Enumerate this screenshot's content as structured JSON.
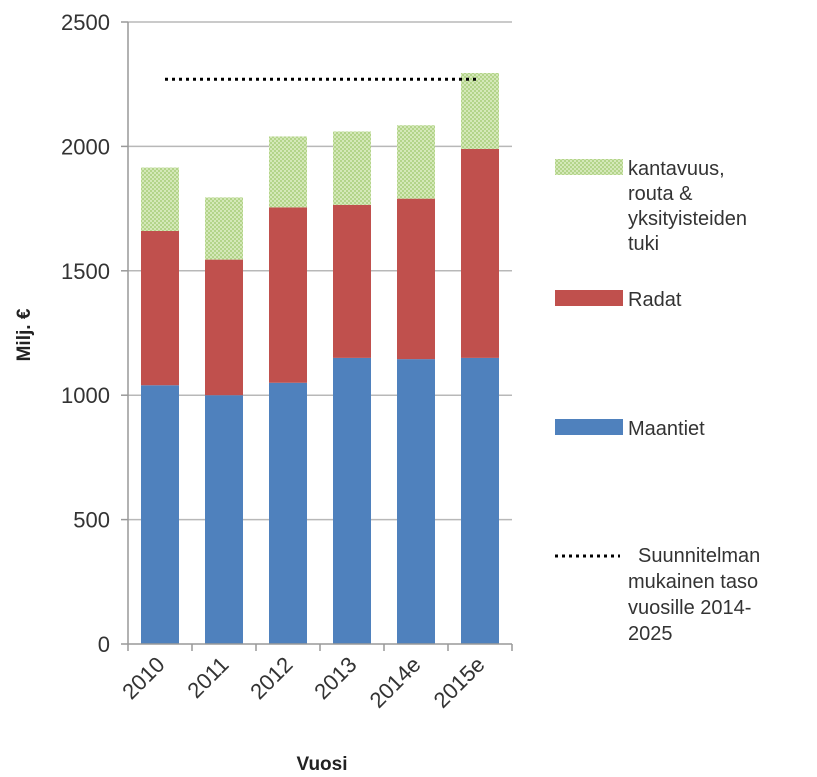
{
  "chart_data": {
    "type": "bar",
    "stacked": true,
    "title": "",
    "xlabel": "Vuosi",
    "ylabel": "Milj. €",
    "categories": [
      "2010",
      "2011",
      "2012",
      "2013",
      "2014e",
      "2015e"
    ],
    "ylim": [
      0,
      2500
    ],
    "yticks": [
      0,
      500,
      1000,
      1500,
      2000,
      2500
    ],
    "grid": true,
    "legend_position": "right",
    "series": [
      {
        "name": "Maantiet",
        "color": "#4f81bd",
        "values": [
          1040,
          1000,
          1050,
          1150,
          1145,
          1150
        ]
      },
      {
        "name": "Radat",
        "color": "#c0504d",
        "values": [
          620,
          545,
          705,
          615,
          645,
          840
        ]
      },
      {
        "name": "kantavuus, routa & yksityisteiden tuki",
        "legend_lines": [
          "kantavuus,",
          "routa &",
          "yksityisteiden",
          "tuki"
        ],
        "color": "#c6e0a4",
        "pattern": "dotted",
        "values": [
          255,
          250,
          285,
          295,
          295,
          305
        ]
      }
    ],
    "reference_line": {
      "name": "Suunnitelman mukainen taso vuosille 2014-2025",
      "legend_lines": [
        "Suunnitelman",
        "mukainen taso",
        "vuosille 2014-",
        "2025"
      ],
      "value": 2270,
      "style": "dotted",
      "color": "#000000"
    }
  }
}
